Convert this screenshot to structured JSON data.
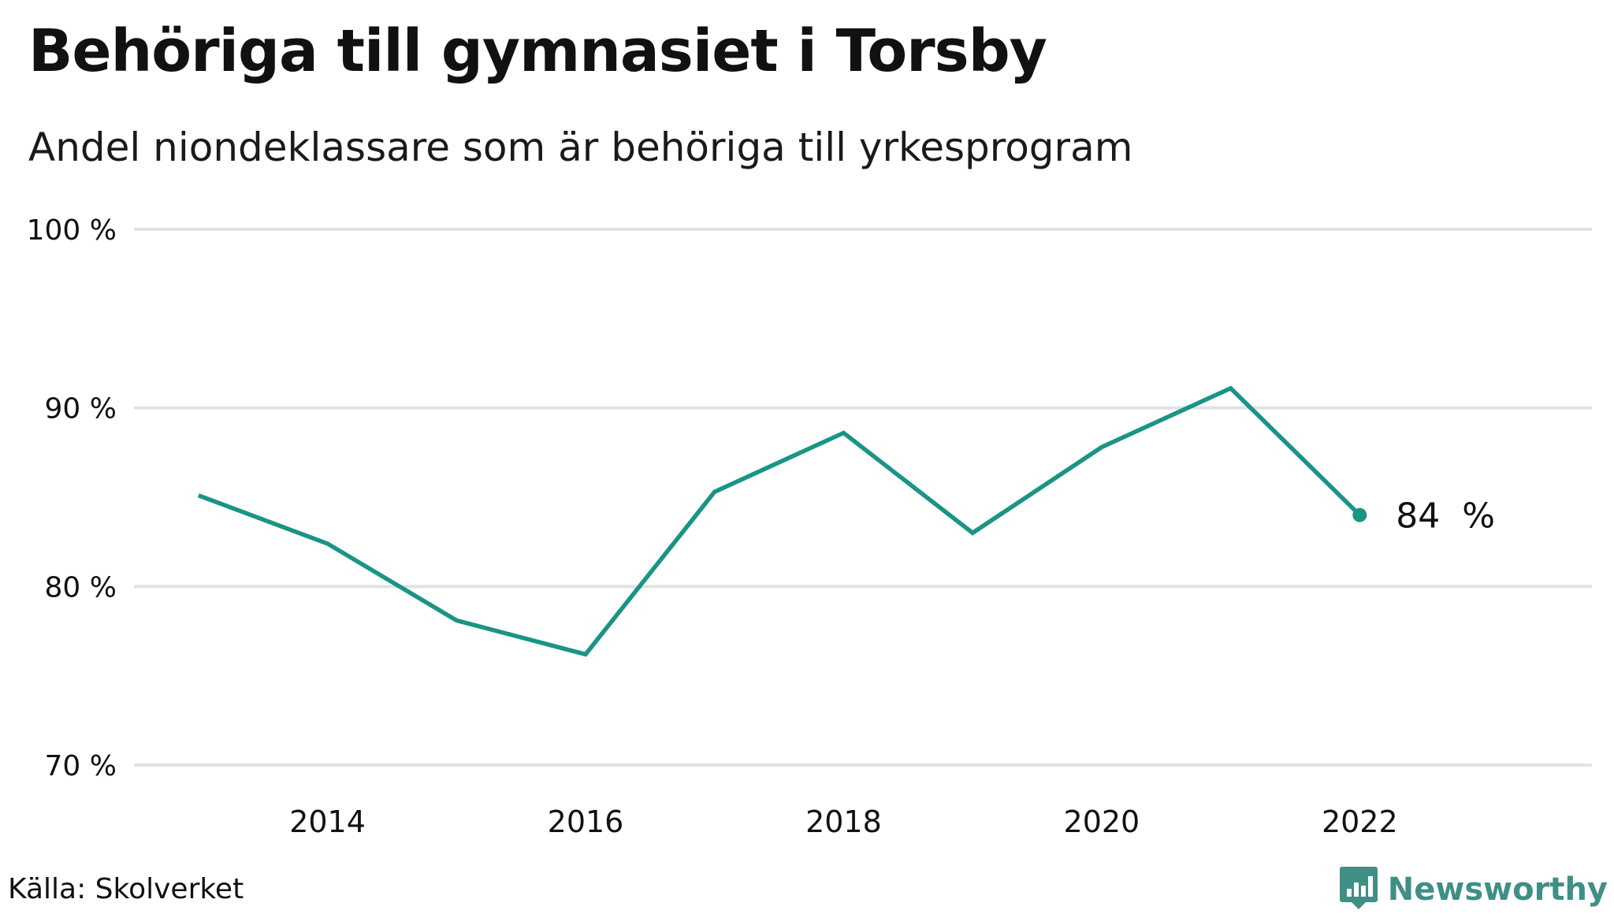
{
  "header": {
    "title": "Behöriga till gymnasiet i Torsby",
    "subtitle": "Andel niondeklassare som är behöriga till yrkesprogram"
  },
  "footer": {
    "source": "Källa: Skolverket",
    "brand": "Newsworthy",
    "brand_icon": "newsworthy-logo-icon",
    "brand_color": "#3f8f86"
  },
  "chart_data": {
    "type": "line",
    "title": "Behöriga till gymnasiet i Torsby",
    "subtitle": "Andel niondeklassare som är behöriga till yrkesprogram",
    "xlabel": "",
    "ylabel": "",
    "x": [
      2013,
      2014,
      2015,
      2016,
      2017,
      2018,
      2019,
      2020,
      2021,
      2022
    ],
    "series": [
      {
        "values": [
          85.1,
          82.4,
          78.1,
          76.2,
          85.3,
          88.6,
          83.0,
          87.8,
          91.1,
          84.0
        ],
        "color": "#1a9485"
      }
    ],
    "xlim": [
      2012.5,
      2023.8
    ],
    "ylim": [
      70,
      100
    ],
    "yticks": [
      70,
      80,
      90,
      100
    ],
    "ytick_labels": [
      "70 %",
      "80 %",
      "90 %",
      "100 %"
    ],
    "xticks": [
      2014,
      2016,
      2018,
      2020,
      2022
    ],
    "xtick_labels": [
      "2014",
      "2016",
      "2018",
      "2020",
      "2022"
    ],
    "end_label": "84  %",
    "grid": true,
    "gridline_color": "#e2e2e2"
  }
}
